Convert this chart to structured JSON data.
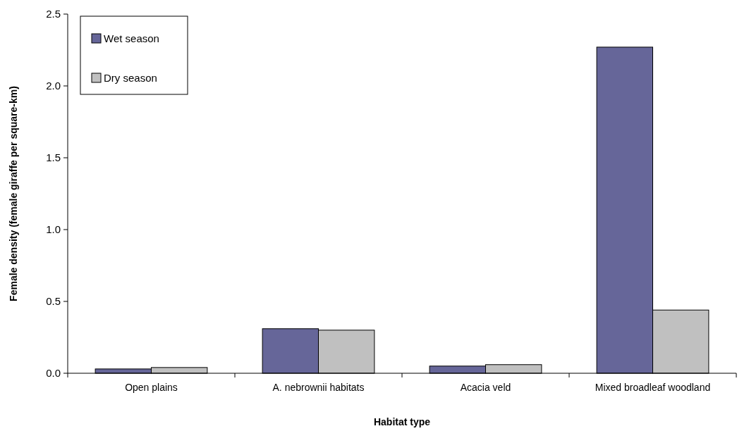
{
  "chart_data": {
    "type": "bar",
    "xlabel": "Habitat type",
    "ylabel": "Female density (female giraffe per square-km)",
    "categories": [
      "Open plains",
      "A. nebrownii habitats",
      "Acacia veld",
      "Mixed broadleaf woodland"
    ],
    "series": [
      {
        "name": "Wet season",
        "color": "#666699",
        "values": [
          0.03,
          0.31,
          0.05,
          2.27
        ]
      },
      {
        "name": "Dry season",
        "color": "#c0c0c0",
        "values": [
          0.04,
          0.3,
          0.06,
          0.44
        ]
      }
    ],
    "ylim": [
      0,
      2.5
    ],
    "yticks": [
      {
        "value": 0,
        "label": "0.0"
      },
      {
        "value": 0.5,
        "label": "0.5"
      },
      {
        "value": 1,
        "label": "1.0"
      },
      {
        "value": 1.5,
        "label": "1.5"
      },
      {
        "value": 2,
        "label": "2.0"
      },
      {
        "value": 2.5,
        "label": "2.5"
      }
    ],
    "grid": false,
    "legend": "top left"
  }
}
